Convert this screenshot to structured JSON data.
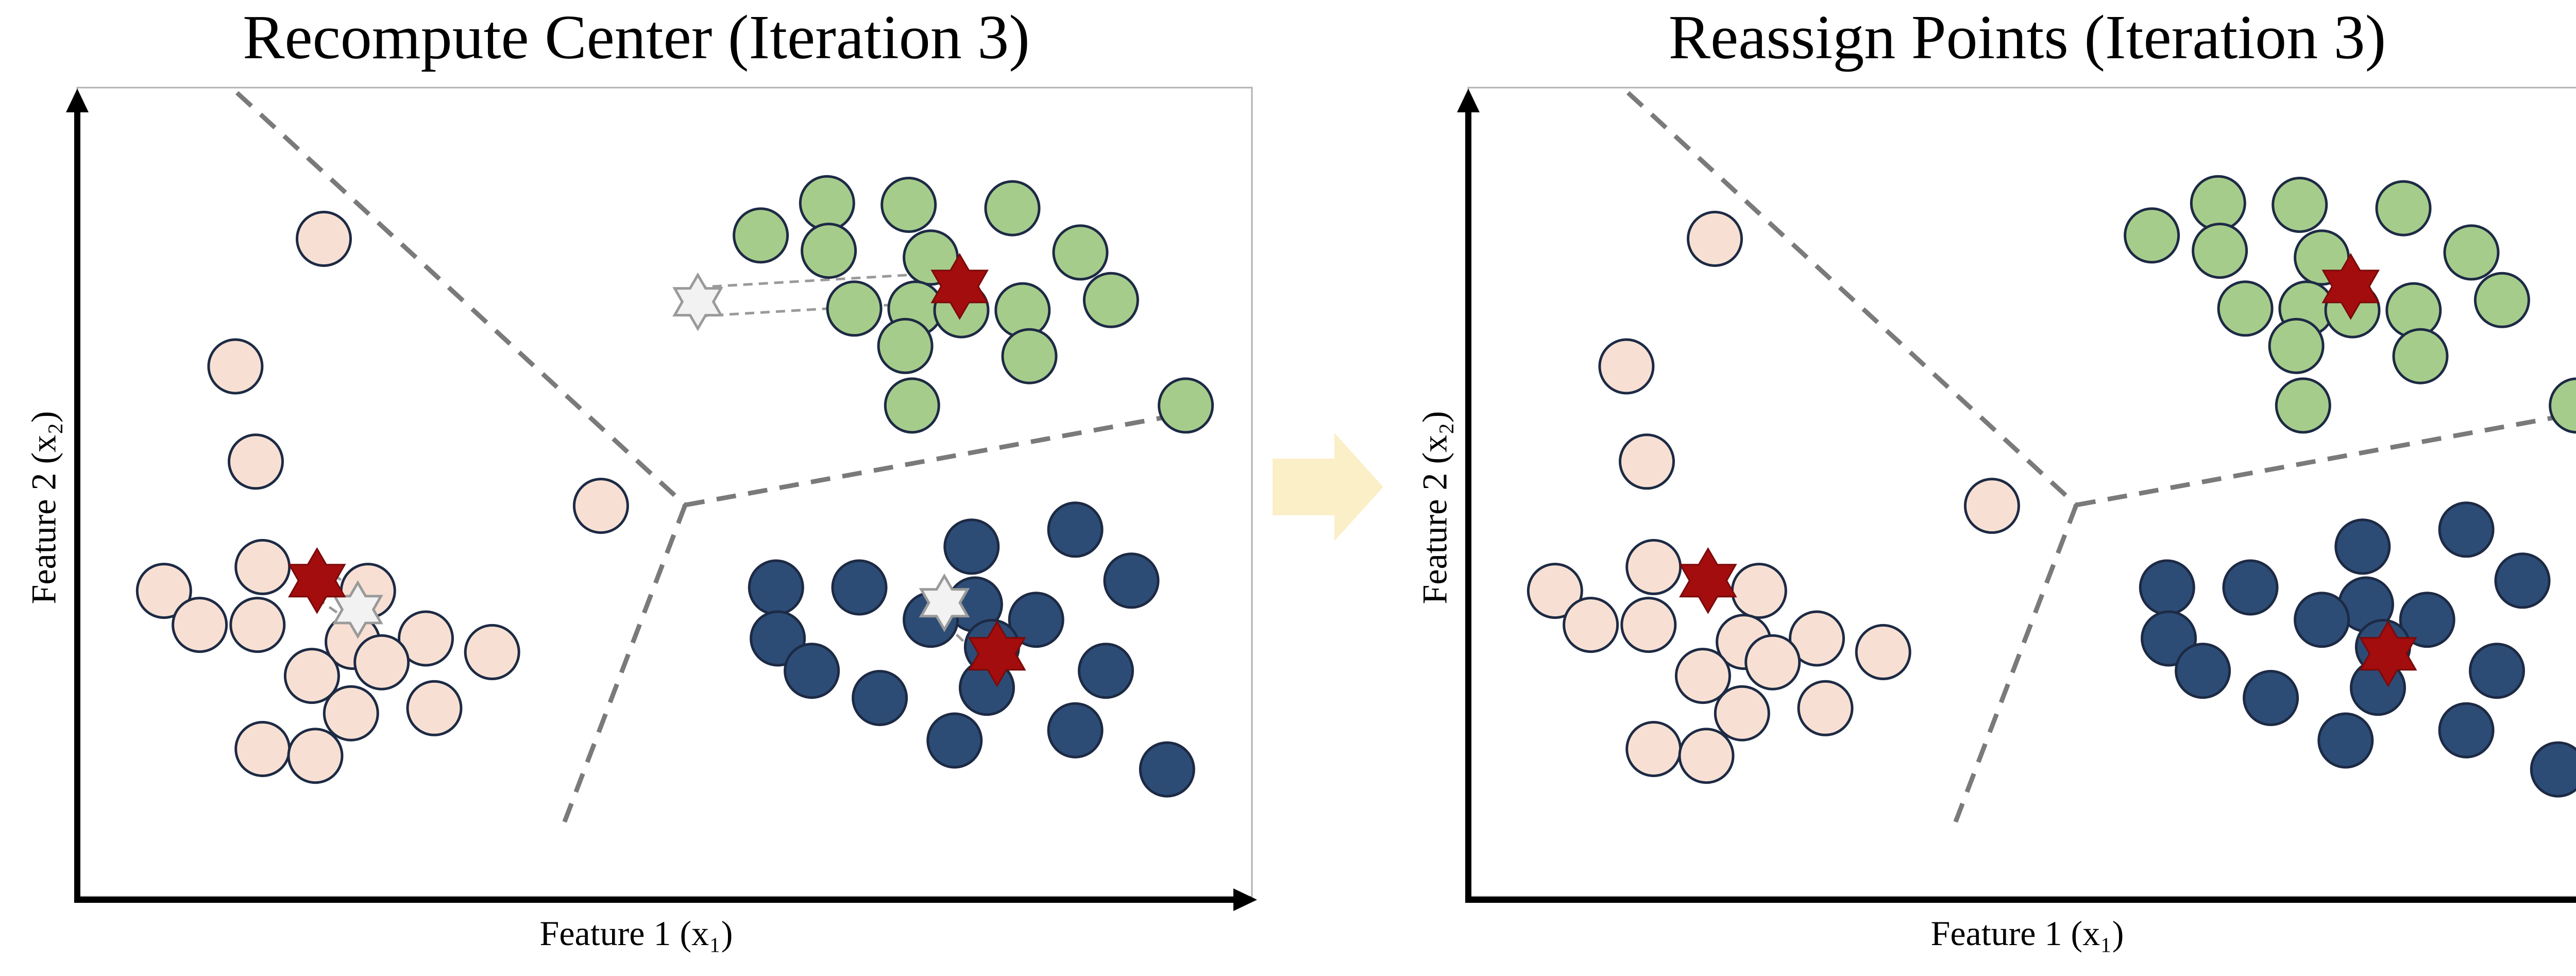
{
  "colors": {
    "cluster_light": "#f7e0d3",
    "cluster_green": "#a6cc8c",
    "cluster_navy": "#2c4c76",
    "marker_edge": "#1d2a44",
    "centroid": "#a30d0d",
    "old_centroid": "#f2f2f2",
    "boundary": "#7a7a7a",
    "arrow": "#fbefc8"
  },
  "icons": {
    "centroid": "star-of-david-icon",
    "transition": "arrow-right-icon"
  },
  "panels": [
    {
      "title": "Recompute Center (Iteration 3)",
      "xlabel": "Feature 1 (x₁)",
      "ylabel": "Feature 2 (x₂)",
      "points": {
        "light": [
          [
            145,
            95
          ],
          [
            93,
            170
          ],
          [
            105,
            226
          ],
          [
            308,
            252
          ],
          [
            51,
            302
          ],
          [
            109,
            288
          ],
          [
            171,
            302
          ],
          [
            72,
            322
          ],
          [
            106,
            322
          ],
          [
            162,
            332
          ],
          [
            205,
            330
          ],
          [
            244,
            338
          ],
          [
            179,
            344
          ],
          [
            138,
            352
          ],
          [
            161,
            374
          ],
          [
            210,
            371
          ],
          [
            109,
            395
          ],
          [
            140,
            399
          ]
        ],
        "green": [
          [
            441,
            74
          ],
          [
            489,
            75
          ],
          [
            550,
            77
          ],
          [
            402,
            93
          ],
          [
            442,
            102
          ],
          [
            502,
            106
          ],
          [
            590,
            103
          ],
          [
            608,
            131
          ],
          [
            457,
            136
          ],
          [
            493,
            136
          ],
          [
            520,
            137
          ],
          [
            556,
            137
          ],
          [
            487,
            158
          ],
          [
            560,
            164
          ],
          [
            652,
            193
          ],
          [
            491,
            193
          ]
        ],
        "navy": [
          [
            526,
            276
          ],
          [
            587,
            266
          ],
          [
            411,
            300
          ],
          [
            460,
            300
          ],
          [
            620,
            296
          ],
          [
            528,
            310
          ],
          [
            502,
            319
          ],
          [
            564,
            319
          ],
          [
            412,
            330
          ],
          [
            538,
            335
          ],
          [
            432,
            349
          ],
          [
            605,
            349
          ],
          [
            472,
            365
          ],
          [
            535,
            359
          ],
          [
            587,
            384
          ],
          [
            516,
            390
          ],
          [
            641,
            407
          ]
        ]
      },
      "centroids": [
        [
          141,
          296
        ],
        [
          519,
          123
        ],
        [
          541,
          339
        ]
      ],
      "old_centroids": [
        [
          165,
          313
        ],
        [
          365,
          132
        ],
        [
          510,
          309
        ]
      ]
    },
    {
      "title": "Reassign Points (Iteration 3)",
      "xlabel": "Feature 1 (x₁)",
      "ylabel": "Feature 2 (x₂)",
      "points": {
        "light": [
          [
            145,
            95
          ],
          [
            93,
            170
          ],
          [
            105,
            226
          ],
          [
            308,
            252
          ],
          [
            51,
            302
          ],
          [
            109,
            288
          ],
          [
            171,
            302
          ],
          [
            72,
            322
          ],
          [
            106,
            322
          ],
          [
            162,
            332
          ],
          [
            205,
            330
          ],
          [
            244,
            338
          ],
          [
            179,
            344
          ],
          [
            138,
            352
          ],
          [
            161,
            374
          ],
          [
            210,
            371
          ],
          [
            109,
            395
          ],
          [
            140,
            399
          ]
        ],
        "green": [
          [
            441,
            74
          ],
          [
            489,
            75
          ],
          [
            550,
            77
          ],
          [
            402,
            93
          ],
          [
            442,
            102
          ],
          [
            502,
            106
          ],
          [
            590,
            103
          ],
          [
            608,
            131
          ],
          [
            457,
            136
          ],
          [
            493,
            136
          ],
          [
            520,
            137
          ],
          [
            556,
            137
          ],
          [
            487,
            158
          ],
          [
            560,
            164
          ],
          [
            652,
            193
          ],
          [
            491,
            193
          ]
        ],
        "navy": [
          [
            526,
            276
          ],
          [
            587,
            266
          ],
          [
            411,
            300
          ],
          [
            460,
            300
          ],
          [
            620,
            296
          ],
          [
            528,
            310
          ],
          [
            502,
            319
          ],
          [
            564,
            319
          ],
          [
            412,
            330
          ],
          [
            538,
            335
          ],
          [
            432,
            349
          ],
          [
            605,
            349
          ],
          [
            472,
            365
          ],
          [
            535,
            359
          ],
          [
            587,
            384
          ],
          [
            516,
            390
          ],
          [
            641,
            407
          ]
        ]
      },
      "centroids": [
        [
          141,
          296
        ],
        [
          519,
          123
        ],
        [
          541,
          339
        ]
      ],
      "old_centroids": []
    }
  ]
}
